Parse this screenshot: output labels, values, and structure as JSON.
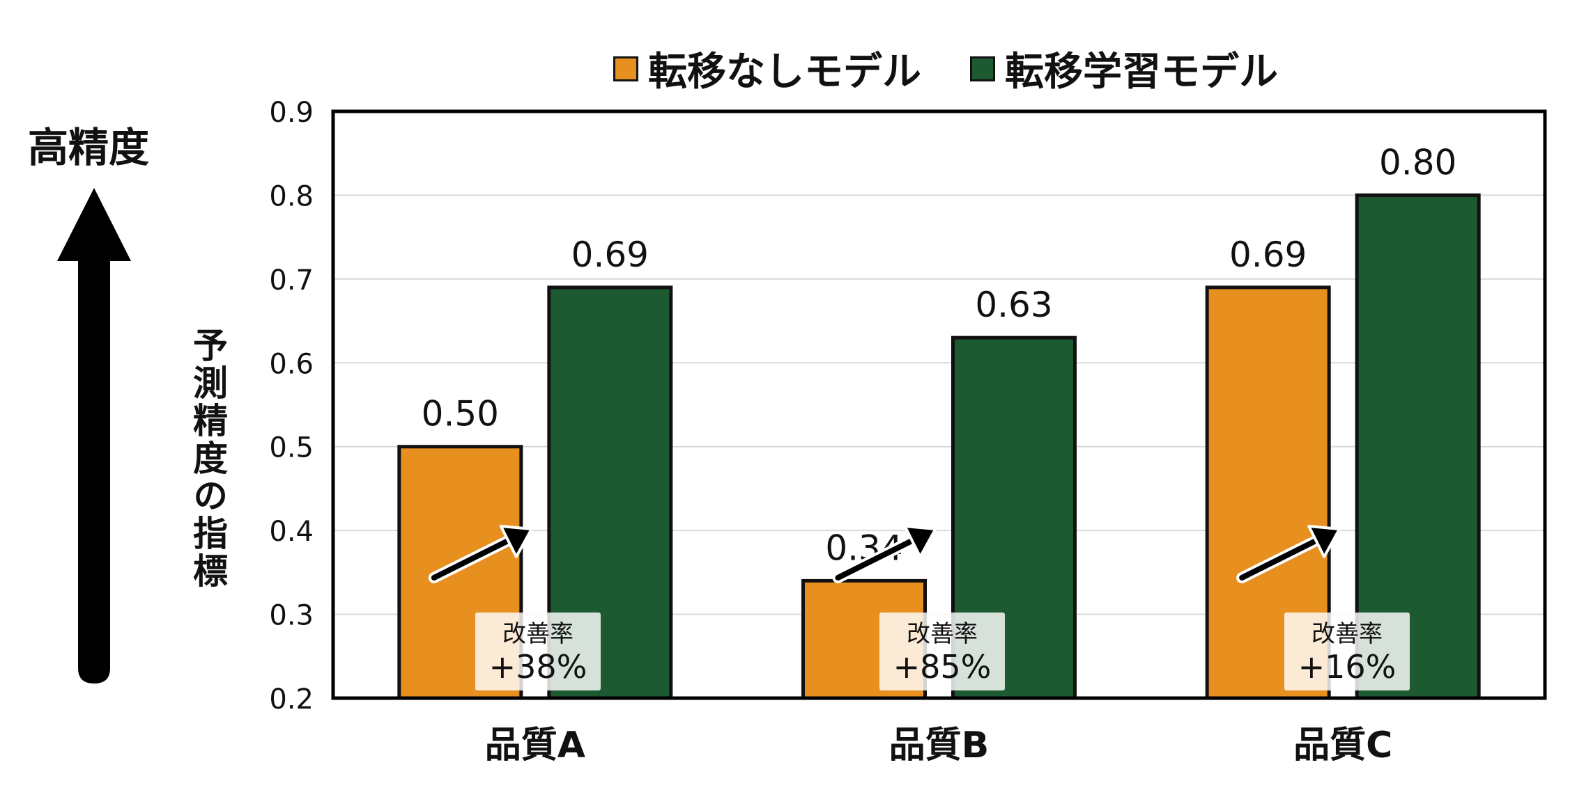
{
  "quality_label": "高精度",
  "ylabel": "予測精度の指標",
  "legend": [
    {
      "label": "転移なしモデル",
      "color": "#E7901F"
    },
    {
      "label": "転移学習モデル",
      "color": "#1D5A31"
    }
  ],
  "improvements": [
    {
      "title": "改善率",
      "value": "+38%"
    },
    {
      "title": "改善率",
      "value": "+85%"
    },
    {
      "title": "改善率",
      "value": "+16%"
    }
  ],
  "chart_data": {
    "type": "bar",
    "categories": [
      "品質A",
      "品質B",
      "品質C"
    ],
    "series": [
      {
        "name": "転移なしモデル",
        "values": [
          0.5,
          0.34,
          0.69
        ],
        "labels": [
          "0.50",
          "0.34",
          "0.69"
        ],
        "color": "#E7901F"
      },
      {
        "name": "転移学習モデル",
        "values": [
          0.69,
          0.63,
          0.8
        ],
        "labels": [
          "0.69",
          "0.63",
          "0.80"
        ],
        "color": "#1D5A31"
      }
    ],
    "ylim": [
      0.2,
      0.9
    ],
    "yticks": [
      "0.2",
      "0.3",
      "0.4",
      "0.5",
      "0.6",
      "0.7",
      "0.8",
      "0.9"
    ],
    "grid": true
  }
}
